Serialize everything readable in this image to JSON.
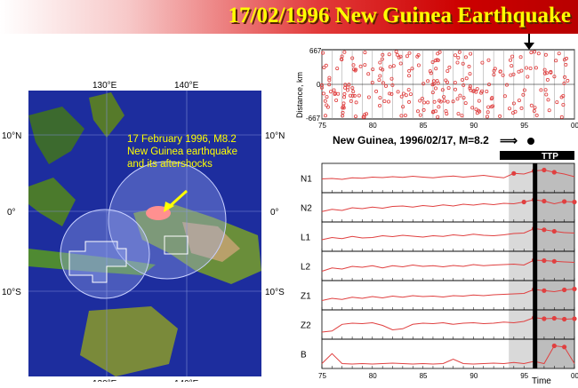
{
  "title": "17/02/1996 New Guinea Earthquake",
  "map": {
    "lon_labels": [
      "130°E",
      "140°E"
    ],
    "lat_labels": [
      "10°N",
      "0°",
      "10°S"
    ],
    "annotation": [
      "17 February 1996, M8.2",
      "New Guinea earthquake",
      "and its aftershocks"
    ],
    "colors": {
      "ocean": "#1d2d9e",
      "annotation": "#ffff00",
      "arrow": "#ffff00"
    }
  },
  "chart_data": [
    {
      "type": "scatter",
      "ylabel": "Distance, km",
      "yticks": [
        "667",
        "0",
        "-667"
      ],
      "ylim": [
        -667,
        667
      ],
      "xlim": [
        75,
        100
      ],
      "xticks": [
        "75",
        "80",
        "85",
        "90",
        "95",
        "00"
      ],
      "marker_color": "#e04040"
    },
    {
      "type": "line",
      "caption": "New Guinea, 1996/02/17, M=8.2",
      "ttp_label": "TTP",
      "xlabel": "Time",
      "xlim": [
        75,
        100
      ],
      "xticks": [
        "75",
        "80",
        "85",
        "90",
        "95",
        "00"
      ],
      "event_year": 96.1,
      "series": [
        {
          "name": "N1",
          "values": [
            0.5,
            0.52,
            0.48,
            0.55,
            0.53,
            0.58,
            0.56,
            0.6,
            0.57,
            0.62,
            0.58,
            0.55,
            0.6,
            0.63,
            0.58,
            0.62,
            0.66,
            0.6,
            0.55,
            0.75,
            0.72,
            0.86,
            0.9,
            0.8,
            0.72,
            0.6
          ]
        },
        {
          "name": "N2",
          "values": [
            0.35,
            0.45,
            0.4,
            0.52,
            0.48,
            0.55,
            0.5,
            0.58,
            0.6,
            0.55,
            0.62,
            0.58,
            0.65,
            0.6,
            0.68,
            0.64,
            0.7,
            0.66,
            0.72,
            0.7,
            0.78,
            0.88,
            0.82,
            0.7,
            0.8,
            0.78
          ]
        },
        {
          "name": "L1",
          "values": [
            0.4,
            0.5,
            0.45,
            0.55,
            0.48,
            0.5,
            0.58,
            0.54,
            0.6,
            0.56,
            0.52,
            0.58,
            0.55,
            0.62,
            0.58,
            0.65,
            0.6,
            0.58,
            0.62,
            0.68,
            0.7,
            0.9,
            0.85,
            0.78,
            0.72,
            0.7
          ]
        },
        {
          "name": "L2",
          "values": [
            0.3,
            0.45,
            0.4,
            0.52,
            0.48,
            0.55,
            0.45,
            0.55,
            0.5,
            0.58,
            0.52,
            0.55,
            0.5,
            0.56,
            0.52,
            0.6,
            0.55,
            0.58,
            0.6,
            0.62,
            0.58,
            0.8,
            0.78,
            0.75,
            0.72,
            0.7
          ]
        },
        {
          "name": "Z1",
          "values": [
            0.3,
            0.4,
            0.35,
            0.45,
            0.4,
            0.48,
            0.42,
            0.5,
            0.45,
            0.52,
            0.48,
            0.5,
            0.46,
            0.52,
            0.5,
            0.55,
            0.52,
            0.56,
            0.58,
            0.6,
            0.62,
            0.8,
            0.75,
            0.7,
            0.78,
            0.82
          ]
        },
        {
          "name": "Z2",
          "values": [
            0.2,
            0.25,
            0.55,
            0.6,
            0.58,
            0.62,
            0.5,
            0.3,
            0.35,
            0.55,
            0.6,
            0.58,
            0.62,
            0.55,
            0.6,
            0.62,
            0.58,
            0.6,
            0.65,
            0.62,
            0.68,
            0.85,
            0.8,
            0.82,
            0.78,
            0.8
          ]
        },
        {
          "name": "B",
          "values": [
            0.1,
            0.55,
            0.1,
            0.08,
            0.1,
            0.08,
            0.1,
            0.12,
            0.1,
            0.08,
            0.1,
            0.08,
            0.1,
            0.3,
            0.1,
            0.08,
            0.1,
            0.12,
            0.1,
            0.15,
            0.1,
            0.2,
            0.1,
            0.9,
            0.85,
            0.1
          ]
        }
      ],
      "line_color": "#e04040",
      "ttp_color": "#000000"
    }
  ]
}
